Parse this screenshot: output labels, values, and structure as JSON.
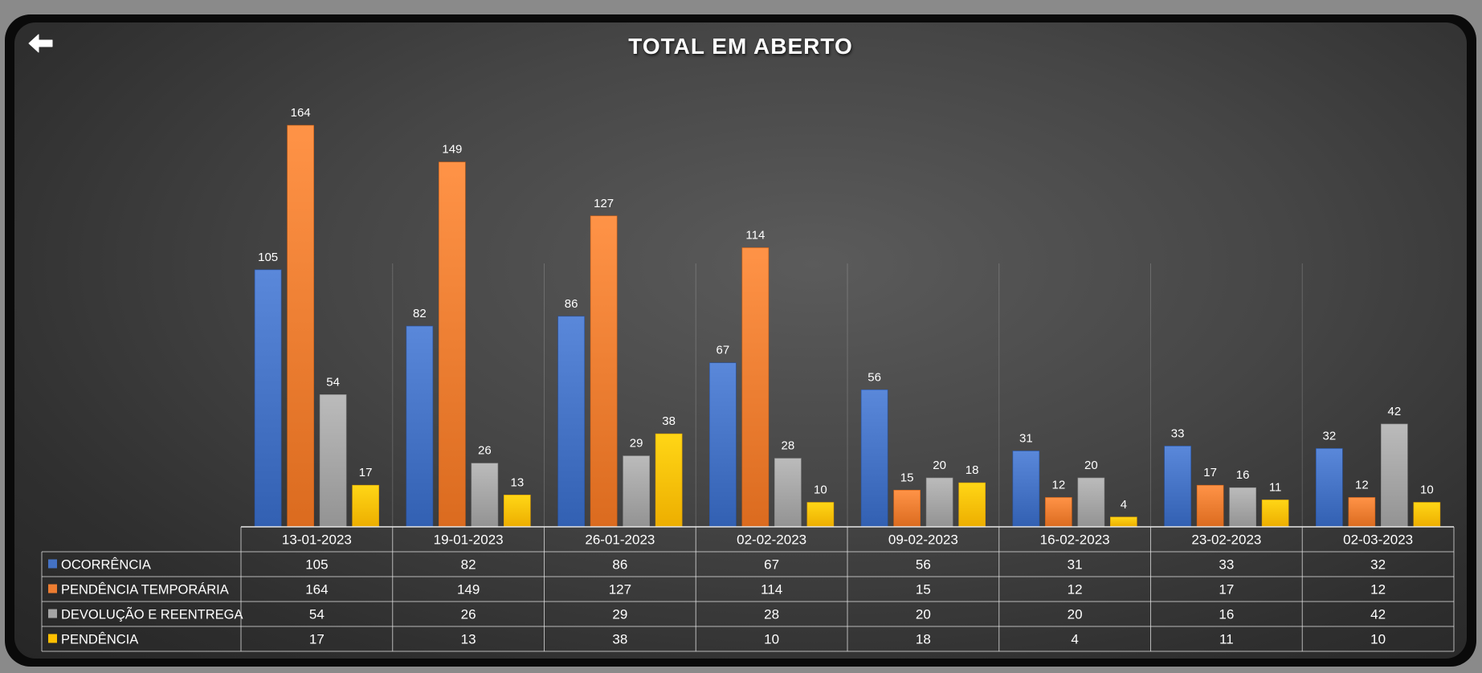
{
  "chart_data": {
    "type": "bar",
    "title": "TOTAL EM ABERTO",
    "categories": [
      "13-01-2023",
      "19-01-2023",
      "26-01-2023",
      "02-02-2023",
      "09-02-2023",
      "16-02-2023",
      "23-02-2023",
      "02-03-2023"
    ],
    "series": [
      {
        "name": "OCORRÊNCIA",
        "color": "#4472c4",
        "values": [
          105,
          82,
          86,
          67,
          56,
          31,
          33,
          32
        ]
      },
      {
        "name": "PENDÊNCIA TEMPORÁRIA",
        "color": "#ed7d31",
        "values": [
          164,
          149,
          127,
          114,
          15,
          12,
          17,
          12
        ]
      },
      {
        "name": "DEVOLUÇÃO E REENTREGA",
        "color": "#a5a5a5",
        "values": [
          54,
          26,
          29,
          28,
          20,
          20,
          16,
          42
        ]
      },
      {
        "name": "PENDÊNCIA",
        "color": "#ffc000",
        "values": [
          17,
          13,
          38,
          10,
          18,
          4,
          11,
          10
        ]
      }
    ],
    "ylim": [
      0,
      164
    ],
    "grid": false,
    "legend": "data-table-left",
    "data_table": true
  },
  "nav": {
    "back_icon": "arrow-left-icon"
  }
}
